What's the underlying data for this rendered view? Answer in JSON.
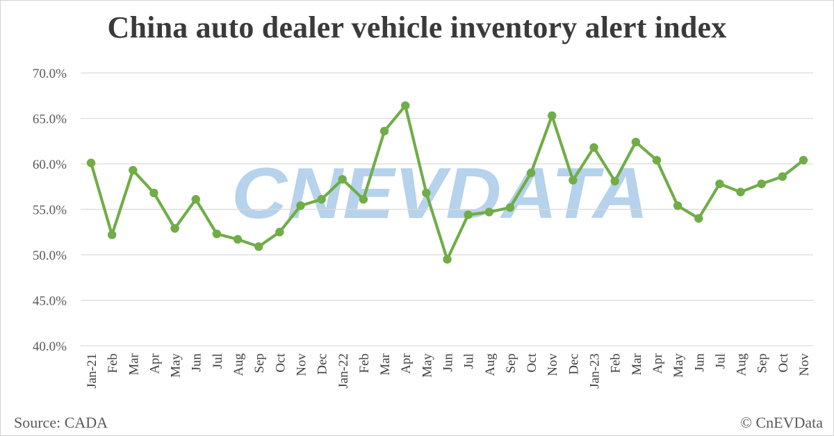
{
  "title": "China auto dealer vehicle inventory alert index",
  "source": "Source: CADA",
  "copyright": "© CnEVData",
  "watermark_text": "CNEVDATA",
  "colors": {
    "line": "#70AD47",
    "marker": "#70AD47",
    "watermark": "#9DC3E6",
    "grid": "#D9D9D9"
  },
  "chart_data": {
    "type": "line",
    "title": "China auto dealer vehicle inventory alert index",
    "xlabel": "",
    "ylabel": "",
    "ylim": [
      40,
      70
    ],
    "yticks": [
      70,
      65,
      60,
      55,
      50,
      45,
      40
    ],
    "ytick_labels": [
      "70.0%",
      "65.0%",
      "60.0%",
      "55.0%",
      "50.0%",
      "45.0%",
      "40.0%"
    ],
    "grid": true,
    "legend": "none",
    "categories": [
      "Jan-21",
      "Feb",
      "Mar",
      "Apr",
      "May",
      "Jun",
      "Jul",
      "Aug",
      "Sep",
      "Oct",
      "Nov",
      "Dec",
      "Jan-22",
      "Feb",
      "Mar",
      "Apr",
      "May",
      "Jun",
      "Jul",
      "Aug",
      "Sep",
      "Oct",
      "Nov",
      "Dec",
      "Jan-23",
      "Feb",
      "Mar",
      "Apr",
      "May",
      "Jun",
      "Jul",
      "Aug",
      "Sep",
      "Oct",
      "Nov"
    ],
    "series": [
      {
        "values": [
          60.1,
          52.2,
          59.3,
          56.8,
          52.9,
          56.1,
          52.3,
          51.7,
          50.9,
          52.5,
          55.4,
          56.1,
          58.3,
          56.1,
          63.6,
          66.4,
          56.8,
          49.5,
          54.4,
          54.7,
          55.2,
          59.0,
          65.3,
          58.2,
          61.8,
          58.1,
          62.4,
          60.4,
          55.4,
          54.0,
          57.8,
          56.9,
          57.8,
          58.6,
          60.4
        ]
      }
    ]
  }
}
